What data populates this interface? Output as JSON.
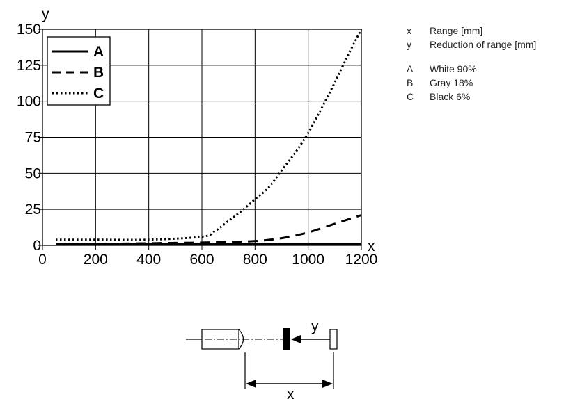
{
  "chart_data": {
    "type": "line",
    "xlabel": "x",
    "ylabel": "y",
    "xlim": [
      0,
      1200
    ],
    "ylim": [
      0,
      150
    ],
    "x_ticks": [
      0,
      200,
      400,
      600,
      800,
      1000,
      1200
    ],
    "x_tick_labels": [
      "0",
      "200",
      "400",
      "600",
      "800",
      "1000",
      "1200"
    ],
    "y_ticks": [
      0,
      25,
      50,
      75,
      100,
      125,
      150
    ],
    "y_tick_labels": [
      "0",
      "25",
      "50",
      "75",
      "100",
      "125",
      "150"
    ],
    "grid": true,
    "legend_position": "top-left",
    "series": [
      {
        "name": "A",
        "style": "solid",
        "x": [
          50,
          200,
          400,
          600,
          800,
          1000,
          1200
        ],
        "y": [
          1,
          1,
          1,
          1,
          1,
          1,
          1
        ]
      },
      {
        "name": "B",
        "style": "dashed",
        "x": [
          50,
          200,
          400,
          600,
          700,
          800,
          900,
          1000,
          1100,
          1200
        ],
        "y": [
          1,
          1,
          1.5,
          2,
          2.5,
          3,
          5,
          9,
          15,
          21
        ]
      },
      {
        "name": "C",
        "style": "dotted",
        "x": [
          50,
          200,
          400,
          600,
          650,
          700,
          750,
          800,
          850,
          900,
          950,
          1000,
          1050,
          1100,
          1150,
          1200
        ],
        "y": [
          4,
          4,
          4,
          6,
          10,
          17,
          24,
          32,
          40,
          52,
          64,
          78,
          95,
          113,
          132,
          150
        ]
      }
    ]
  },
  "side_legend": {
    "axes": [
      {
        "key": "x",
        "text": "Range [mm]"
      },
      {
        "key": "y",
        "text": "Reduction of range [mm]"
      }
    ],
    "series": [
      {
        "key": "A",
        "text": "White 90%"
      },
      {
        "key": "B",
        "text": "Gray 18%"
      },
      {
        "key": "C",
        "text": "Black 6%"
      }
    ]
  },
  "diagram": {
    "x_label": "x",
    "y_label": "y"
  }
}
